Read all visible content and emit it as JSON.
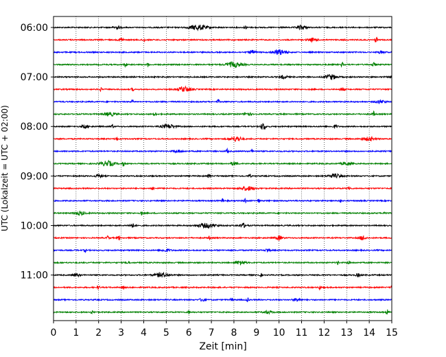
{
  "chart_data": {
    "type": "line",
    "xlabel": "Zeit  [min]",
    "ylabel": "UTC (Lokalzeit = UTC + 02:00)",
    "xlim": [
      0,
      15
    ],
    "xticks": [
      "0",
      "1",
      "2",
      "3",
      "4",
      "5",
      "6",
      "7",
      "8",
      "9",
      "10",
      "11",
      "12",
      "13",
      "14",
      "15"
    ],
    "yticks": [
      "06:00",
      "07:00",
      "08:00",
      "09:00",
      "10:00",
      "11:00"
    ],
    "ytick_rows": [
      0,
      4,
      8,
      12,
      16,
      20
    ],
    "grid": "vertical dotted at each minute",
    "trace_interval_min": 15,
    "trace_colors": [
      "#000000",
      "#ff0000",
      "#0000ff",
      "#008000"
    ],
    "traces": [
      {
        "start": "06:00",
        "events": [
          [
            6.4,
            0.8,
            0.6
          ],
          [
            2.8,
            0.3,
            0.4
          ],
          [
            8.5,
            0.1,
            0.5
          ],
          [
            11.0,
            0.4,
            0.5
          ]
        ]
      },
      {
        "start": "06:15",
        "events": [
          [
            3.0,
            0.2,
            0.5
          ],
          [
            4.0,
            0.1,
            0.5
          ],
          [
            11.5,
            0.4,
            0.4
          ],
          [
            14.3,
            0.1,
            0.7
          ]
        ]
      },
      {
        "start": "06:30",
        "events": [
          [
            10.0,
            0.6,
            0.6
          ],
          [
            8.8,
            0.3,
            0.4
          ],
          [
            14.5,
            0.3,
            0.3
          ]
        ]
      },
      {
        "start": "06:45",
        "events": [
          [
            8.0,
            0.7,
            0.6
          ],
          [
            3.2,
            0.1,
            0.6
          ],
          [
            4.2,
            0.1,
            0.5
          ],
          [
            12.8,
            0.1,
            0.6
          ],
          [
            14.2,
            0.2,
            0.4
          ]
        ]
      },
      {
        "start": "07:00",
        "events": [
          [
            12.3,
            0.5,
            0.6
          ],
          [
            10.2,
            0.3,
            0.4
          ],
          [
            15.0,
            0.1,
            0.4
          ]
        ]
      },
      {
        "start": "07:15",
        "events": [
          [
            5.8,
            0.6,
            0.6
          ],
          [
            2.1,
            0.1,
            0.4
          ],
          [
            3.5,
            0.1,
            0.4
          ],
          [
            12.8,
            0.2,
            0.4
          ]
        ]
      },
      {
        "start": "07:30",
        "events": [
          [
            3.5,
            0.1,
            0.4
          ],
          [
            7.3,
            0.1,
            0.5
          ],
          [
            14.5,
            0.4,
            0.4
          ]
        ]
      },
      {
        "start": "07:45",
        "events": [
          [
            4.5,
            0.1,
            0.6
          ],
          [
            2.5,
            0.5,
            0.4
          ],
          [
            8.6,
            0.3,
            0.4
          ],
          [
            14.2,
            0.1,
            0.6
          ]
        ]
      },
      {
        "start": "08:00",
        "events": [
          [
            9.3,
            0.2,
            0.9
          ],
          [
            2.6,
            0.1,
            0.6
          ],
          [
            5.1,
            0.6,
            0.5
          ],
          [
            1.4,
            0.3,
            0.4
          ],
          [
            12.5,
            0.2,
            0.4
          ]
        ]
      },
      {
        "start": "08:15",
        "events": [
          [
            8.1,
            0.5,
            0.6
          ],
          [
            2.8,
            0.1,
            0.5
          ],
          [
            14.0,
            0.6,
            0.4
          ]
        ]
      },
      {
        "start": "08:30",
        "events": [
          [
            7.7,
            0.1,
            0.5
          ],
          [
            8.8,
            0.1,
            0.5
          ],
          [
            5.5,
            0.4,
            0.3
          ]
        ]
      },
      {
        "start": "08:45",
        "events": [
          [
            2.4,
            0.6,
            0.6
          ],
          [
            3.1,
            0.1,
            0.6
          ],
          [
            8.0,
            0.3,
            0.4
          ],
          [
            13.0,
            0.4,
            0.4
          ]
        ]
      },
      {
        "start": "09:00",
        "events": [
          [
            6.9,
            0.1,
            0.6
          ],
          [
            8.7,
            0.1,
            0.5
          ],
          [
            2.0,
            0.3,
            0.4
          ],
          [
            12.5,
            0.6,
            0.4
          ]
        ]
      },
      {
        "start": "09:15",
        "events": [
          [
            4.4,
            0.1,
            0.6
          ],
          [
            8.6,
            0.6,
            0.5
          ],
          [
            13.1,
            0.1,
            0.6
          ]
        ]
      },
      {
        "start": "09:30",
        "events": [
          [
            7.5,
            0.1,
            0.5
          ],
          [
            8.5,
            0.1,
            0.6
          ],
          [
            9.1,
            0.1,
            0.4
          ],
          [
            12.7,
            0.1,
            0.5
          ]
        ]
      },
      {
        "start": "09:45",
        "events": [
          [
            14.7,
            0.1,
            0.5
          ],
          [
            3.9,
            0.1,
            0.5
          ],
          [
            1.2,
            0.4,
            0.4
          ]
        ]
      },
      {
        "start": "10:00",
        "events": [
          [
            6.8,
            0.8,
            0.5
          ],
          [
            8.4,
            0.3,
            0.5
          ],
          [
            3.5,
            0.3,
            0.4
          ]
        ]
      },
      {
        "start": "10:15",
        "events": [
          [
            10.0,
            0.3,
            0.5
          ],
          [
            2.4,
            0.1,
            0.5
          ],
          [
            2.9,
            0.1,
            0.5
          ],
          [
            6.9,
            0.1,
            0.4
          ],
          [
            13.7,
            0.3,
            0.5
          ]
        ]
      },
      {
        "start": "10:30",
        "events": [
          [
            9.5,
            0.2,
            0.4
          ],
          [
            1.4,
            0.1,
            0.4
          ],
          [
            5.0,
            0.4,
            0.3
          ]
        ]
      },
      {
        "start": "10:45",
        "events": [
          [
            3.3,
            0.1,
            0.6
          ],
          [
            8.3,
            0.4,
            0.5
          ],
          [
            12.6,
            0.1,
            0.5
          ],
          [
            13.1,
            0.1,
            0.5
          ]
        ]
      },
      {
        "start": "11:00",
        "events": [
          [
            4.8,
            0.6,
            0.5
          ],
          [
            9.2,
            0.1,
            0.4
          ],
          [
            1.0,
            0.3,
            0.4
          ],
          [
            13.5,
            0.2,
            0.4
          ]
        ]
      },
      {
        "start": "11:15",
        "events": [
          [
            2.0,
            0.1,
            0.5
          ],
          [
            3.1,
            0.1,
            0.5
          ],
          [
            11.8,
            0.1,
            0.5
          ],
          [
            15.0,
            0.1,
            0.4
          ]
        ]
      },
      {
        "start": "11:30",
        "events": [
          [
            6.6,
            0.2,
            0.5
          ],
          [
            10.8,
            0.3,
            0.4
          ],
          [
            7.9,
            0.1,
            0.4
          ],
          [
            8.6,
            0.1,
            0.5
          ]
        ]
      },
      {
        "start": "11:45",
        "events": [
          [
            14.8,
            0.1,
            0.6
          ],
          [
            1.7,
            0.1,
            0.4
          ],
          [
            6.0,
            0.1,
            0.4
          ],
          [
            9.5,
            0.4,
            0.3
          ]
        ]
      }
    ]
  }
}
